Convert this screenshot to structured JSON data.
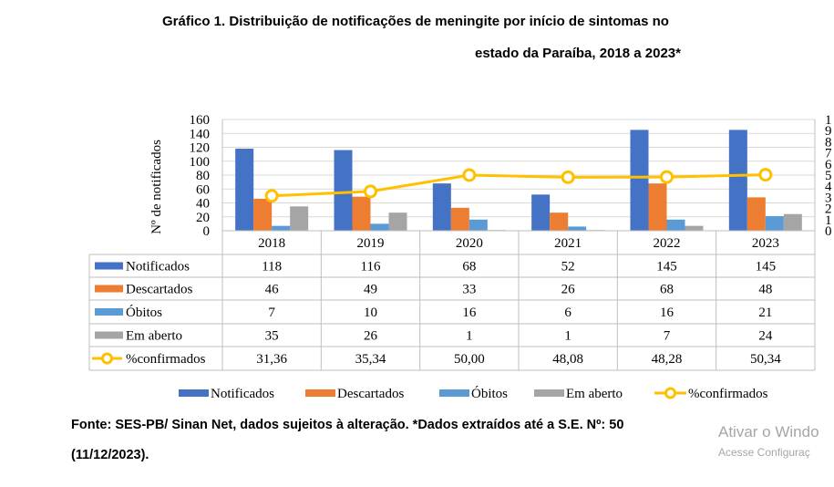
{
  "header": {
    "title_line1": "Gráfico 1. Distribuição de notificações de meningite por início de sintomas no",
    "title_line2": "estado da Paraíba, 2018 a 2023*"
  },
  "footer": {
    "source_line1": "Fonte: SES-PB/ Sinan Net, dados sujeitos à alteração. *Dados extraídos até a S.E. Nº: 50",
    "source_line2": "(11/12/2023)."
  },
  "watermark": {
    "line1": "Ativar o Windo",
    "line2": "Acesse Configuraç"
  },
  "chart_data": {
    "type": "bar",
    "ylabel": "Nº de notificados",
    "ylim": [
      0,
      160
    ],
    "yticks": [
      "160",
      "140",
      "120",
      "100",
      "80",
      "60",
      "40",
      "20",
      "0"
    ],
    "secondary_ylim": [
      0,
      100
    ],
    "secondary_yticks_partial": [
      "1",
      "9",
      "8",
      "7",
      "6",
      "5",
      "4",
      "3",
      "2",
      "1",
      "0"
    ],
    "categories": [
      "2018",
      "2019",
      "2020",
      "2021",
      "2022",
      "2023"
    ],
    "series": [
      {
        "name": "Notificados",
        "type": "bar",
        "color": "#4472C4",
        "values": [
          118,
          116,
          68,
          52,
          145,
          145
        ],
        "labels": [
          "118",
          "116",
          "68",
          "52",
          "145",
          "145"
        ]
      },
      {
        "name": "Descartados",
        "type": "bar",
        "color": "#ED7D31",
        "values": [
          46,
          49,
          33,
          26,
          68,
          48
        ],
        "labels": [
          "46",
          "49",
          "33",
          "26",
          "68",
          "48"
        ]
      },
      {
        "name": "Óbitos",
        "type": "bar",
        "color": "#5B9BD5",
        "values": [
          7,
          10,
          16,
          6,
          16,
          21
        ],
        "labels": [
          "7",
          "10",
          "16",
          "6",
          "16",
          "21"
        ]
      },
      {
        "name": "Em aberto",
        "type": "bar",
        "color": "#A5A5A5",
        "values": [
          35,
          26,
          1,
          1,
          7,
          24
        ],
        "labels": [
          "35",
          "26",
          "1",
          "1",
          "7",
          "24"
        ]
      },
      {
        "name": "%confirmados",
        "type": "line",
        "axis": "secondary",
        "color": "#FFC000",
        "values": [
          31.36,
          35.34,
          50.0,
          48.08,
          48.28,
          50.34
        ],
        "labels": [
          "31,36",
          "35,34",
          "50,00",
          "48,08",
          "48,28",
          "50,34"
        ]
      }
    ],
    "grid": true,
    "legend": "bottom",
    "data_table": true
  }
}
